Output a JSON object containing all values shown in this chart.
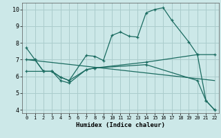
{
  "xlabel": "Humidex (Indice chaleur)",
  "bg_color": "#cce8e8",
  "grid_color": "#aacccc",
  "line_color": "#1a6b60",
  "xlim": [
    -0.5,
    22.5
  ],
  "ylim": [
    3.8,
    10.4
  ],
  "xticks": [
    0,
    1,
    2,
    3,
    4,
    5,
    6,
    7,
    8,
    9,
    10,
    11,
    12,
    13,
    14,
    15,
    16,
    17,
    18,
    19,
    20,
    21,
    22
  ],
  "yticks": [
    4,
    5,
    6,
    7,
    8,
    9,
    10
  ],
  "line1_main": {
    "x": [
      0,
      1,
      2,
      3,
      4,
      5,
      7,
      8,
      9,
      10,
      11,
      12,
      13,
      14,
      15,
      16,
      17,
      19,
      20,
      21,
      22
    ],
    "y": [
      7.7,
      7.0,
      6.3,
      6.3,
      5.95,
      5.75,
      7.25,
      7.2,
      6.95,
      8.45,
      8.65,
      8.4,
      8.35,
      9.8,
      10.0,
      10.1,
      9.35,
      8.05,
      7.3,
      4.55,
      4.0
    ]
  },
  "line2_flat": {
    "x": [
      0,
      1,
      2,
      3,
      4,
      5,
      7,
      8,
      14,
      20,
      22
    ],
    "y": [
      7.0,
      7.0,
      6.3,
      6.3,
      5.95,
      5.75,
      6.4,
      6.5,
      6.85,
      7.3,
      7.3
    ]
  },
  "line3_diagonal": {
    "x": [
      0,
      22
    ],
    "y": [
      7.0,
      5.75
    ]
  },
  "line4_lower": {
    "x": [
      0,
      2,
      3,
      4,
      5,
      7,
      8,
      14,
      20,
      21,
      22
    ],
    "y": [
      6.3,
      6.3,
      6.3,
      5.75,
      5.6,
      6.4,
      6.5,
      6.7,
      5.75,
      4.55,
      4.0
    ]
  }
}
